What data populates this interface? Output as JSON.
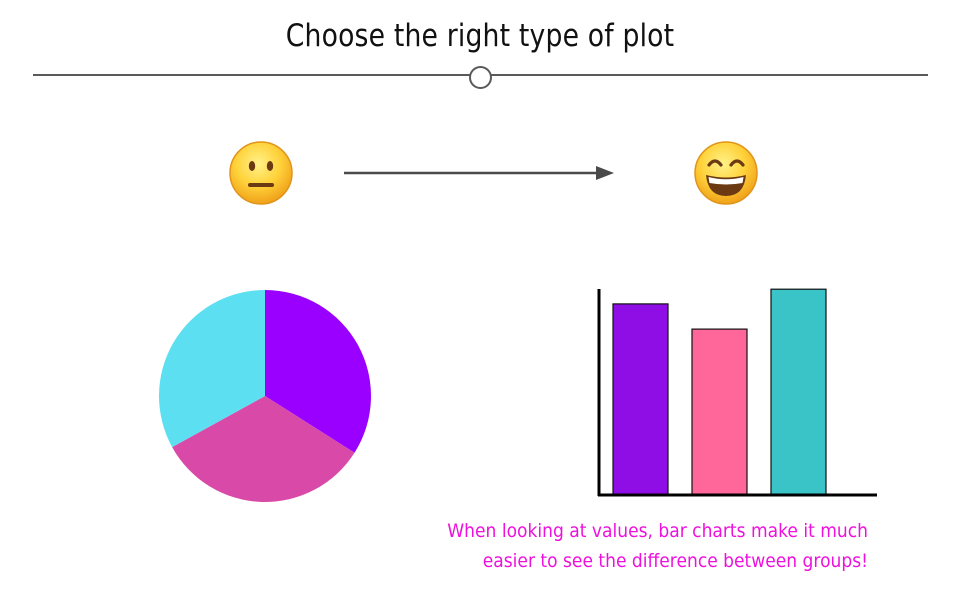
{
  "header": {
    "title": "Choose the right type of plot"
  },
  "icons": {
    "before": "neutral-face-icon",
    "after": "grinning-face-icon",
    "arrow": "right-arrow-icon"
  },
  "caption": {
    "line1": "When looking at values, bar charts make it much",
    "line2": "easier to see the difference between groups!",
    "color": "#ee11dd"
  },
  "chart_data": [
    {
      "type": "pie",
      "title": "",
      "slices": [
        {
          "label": "",
          "value": 34,
          "color": "#9900ff"
        },
        {
          "label": "",
          "value": 33,
          "color": "#d94aa8"
        },
        {
          "label": "",
          "value": 33,
          "color": "#5ddff2"
        }
      ]
    },
    {
      "type": "bar",
      "title": "",
      "xlabel": "",
      "ylabel": "",
      "categories": [
        "",
        "",
        ""
      ],
      "values": [
        91,
        79,
        98
      ],
      "colors": [
        "#8f0ee6",
        "#ff6699",
        "#3bc4c8"
      ],
      "ylim": [
        0,
        100
      ],
      "grid": false
    }
  ]
}
